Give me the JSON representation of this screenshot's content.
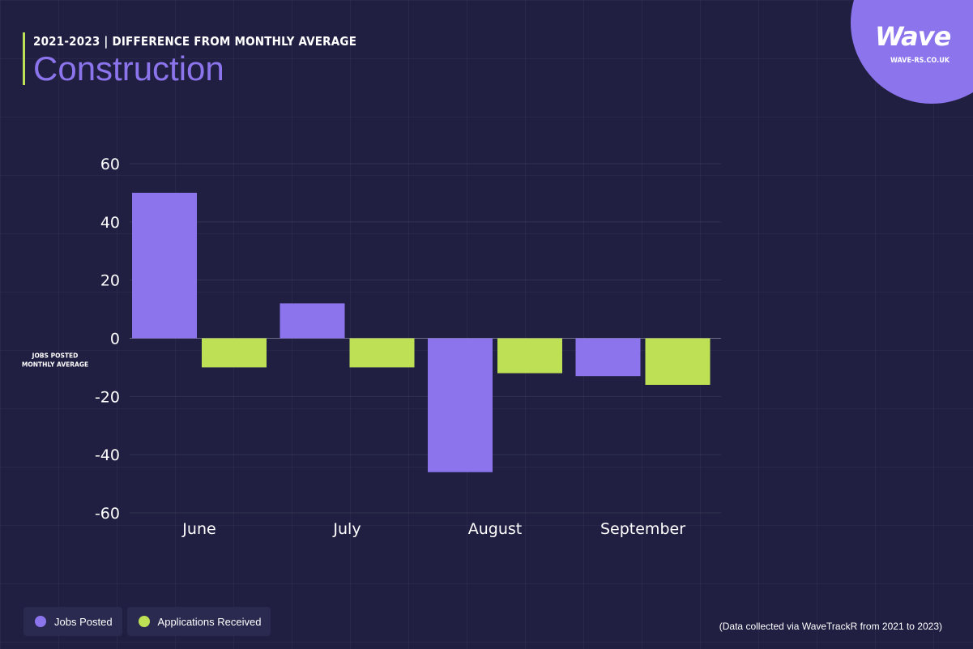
{
  "header": {
    "subtitle": "2021-2023 | DIFFERENCE FROM MONTHLY AVERAGE",
    "title": "Construction"
  },
  "logo": {
    "word": "Wave",
    "site": "WAVE-RS.CO.UK"
  },
  "colors": {
    "background": "#201f42",
    "jobs": "#8b74ec",
    "applications": "#bde055",
    "accent_bar": "#bde055"
  },
  "chart_data": {
    "type": "bar",
    "categories": [
      "June",
      "July",
      "August",
      "September"
    ],
    "series": [
      {
        "name": "Jobs Posted",
        "values": [
          50,
          12,
          -46,
          -13
        ]
      },
      {
        "name": "Applications Received",
        "values": [
          -10,
          -10,
          -12,
          -16
        ]
      }
    ],
    "ylim": [
      -60,
      60
    ],
    "yticks": [
      60,
      40,
      20,
      0,
      -20,
      -40,
      -60
    ],
    "ylabel_lines": [
      "JOBS POSTED",
      "MONTHLY AVERAGE"
    ],
    "grid": true,
    "legend": "bottom-left"
  },
  "legend": [
    {
      "label": "Jobs Posted",
      "color": "#8b74ec"
    },
    {
      "label": "Applications Received",
      "color": "#bde055"
    }
  ],
  "footnote": "(Data collected via WaveTrackR from 2021 to 2023)"
}
